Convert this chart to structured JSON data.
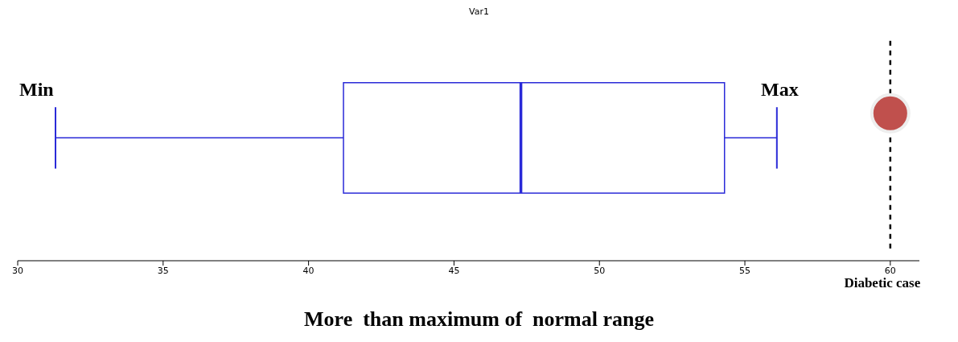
{
  "chart_data": {
    "type": "box",
    "title": "Var1",
    "orientation": "horizontal",
    "categories": [
      null
    ],
    "boxes": [
      {
        "low": 31.3,
        "q1": 41.2,
        "median": 47.3,
        "q3": 54.3,
        "high": 56.1
      }
    ],
    "color": "#2a2ad8",
    "series": [
      {
        "type": "scatter",
        "values": [
          60
        ],
        "color": "#c0504d"
      }
    ],
    "xlim": [
      30,
      61
    ],
    "xticks": [
      30,
      35,
      40,
      45,
      50,
      55,
      60
    ],
    "ref_lines": [
      {
        "axis": "x",
        "value": 60,
        "label": "Diabetic case",
        "color": "#000000",
        "line_style": "dashed"
      }
    ],
    "annotations": [
      "Min",
      "Max",
      "More  than maximum of  normal range"
    ]
  }
}
